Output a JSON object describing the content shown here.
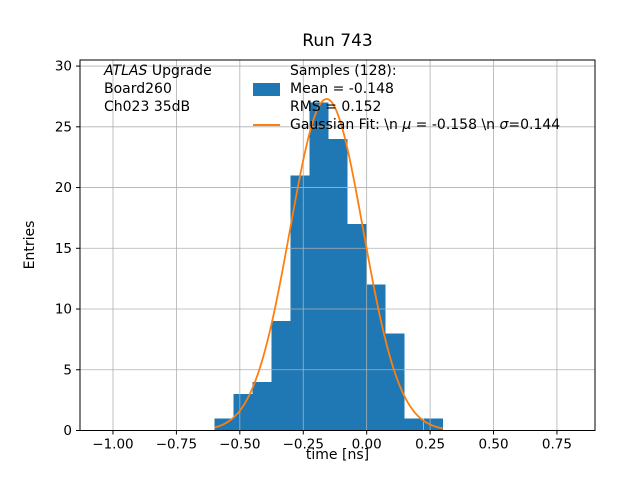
{
  "chart_data": {
    "type": "histogram",
    "title": "Run 743",
    "xlabel": "time [ns]",
    "ylabel": "Entries",
    "xlim": [
      -1.13,
      0.9
    ],
    "ylim": [
      0,
      30.5
    ],
    "grid": true,
    "x_tick_values": [
      -1.0,
      -0.75,
      -0.5,
      -0.25,
      0.0,
      0.25,
      0.5,
      0.75
    ],
    "x_tick_labels": [
      "−1.00",
      "−0.75",
      "−0.50",
      "−0.25",
      "0.00",
      "0.25",
      "0.50",
      "0.75"
    ],
    "y_tick_values": [
      0,
      5,
      10,
      15,
      20,
      25,
      30
    ],
    "y_tick_labels": [
      "0",
      "5",
      "10",
      "15",
      "20",
      "25",
      "30"
    ],
    "bar_color": "#1f77b4",
    "fit_color": "#ff7f0e",
    "grid_color": "#b0b0b0",
    "n_samples": 128,
    "mean": -0.148,
    "rms": 0.152,
    "bins": {
      "edges": [
        -0.6,
        -0.525,
        -0.45,
        -0.375,
        -0.3,
        -0.225,
        -0.15,
        -0.075,
        0.0,
        0.075,
        0.15,
        0.225,
        0.3
      ],
      "counts": [
        1,
        3,
        4,
        9,
        21,
        27,
        24,
        17,
        12,
        8,
        1,
        1
      ]
    },
    "fit": {
      "type": "gaussian",
      "mu": -0.158,
      "sigma": 0.144,
      "amplitude": 27.3,
      "x_range": [
        -0.6,
        0.3
      ]
    }
  },
  "annotation": {
    "line1_italic": "ATLAS",
    "line1_rest": " Upgrade",
    "line2": "Board260",
    "line3": "Ch023 35dB"
  },
  "legend": {
    "samples_title": "Samples (128):",
    "mean_label": "Mean = -0.148",
    "rms_label": "RMS = 0.152",
    "gaussian_prefix": "Gaussian Fit: \\n ",
    "gaussian_mu": "μ",
    "gaussian_mid": " = -0.158 \\n ",
    "gaussian_sigma": "σ",
    "gaussian_suffix": "=0.144"
  }
}
